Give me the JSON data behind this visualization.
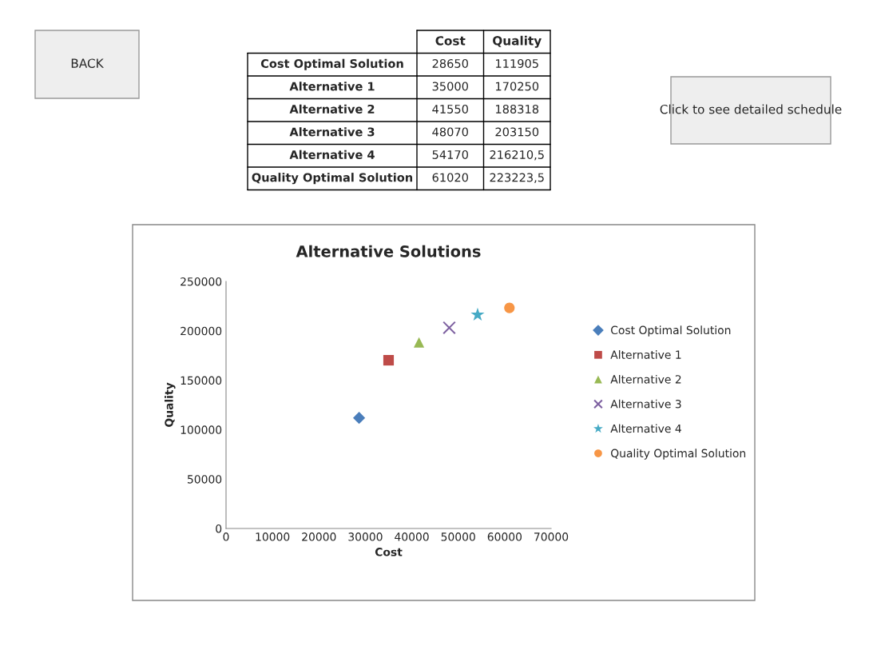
{
  "chart_data": [
    {
      "type": "other",
      "categories": [
        "Cost Optimal Solution",
        "Alternative 1",
        "Alternative 2",
        "Alternative 3",
        "Alternative 4",
        "Quality Optimal Solution"
      ],
      "series": [
        {
          "name": "Cost",
          "values": [
            28650,
            35000,
            41550,
            48070,
            54170,
            61020
          ]
        },
        {
          "name": "Quality",
          "values": [
            111905,
            170250,
            188318,
            203150,
            216210.5,
            223223.5
          ],
          "value_labels": [
            "111905",
            "170250",
            "188318",
            "203150",
            "216210,5",
            "223223,5"
          ]
        }
      ],
      "data_labels": true,
      "annotations": [
        "BACK",
        "Click to see detailed schedule"
      ]
    },
    {
      "type": "scatter",
      "title": "Alternative Solutions",
      "xlabel": "Cost",
      "ylabel": "Quality",
      "series": [
        {
          "name": "Cost Optimal Solution",
          "color": "#4a7ebb",
          "marker": "diamond",
          "x": [
            28650
          ],
          "values": [
            111905
          ]
        },
        {
          "name": "Alternative 1",
          "color": "#be4b48",
          "marker": "square",
          "x": [
            35000
          ],
          "values": [
            170250
          ]
        },
        {
          "name": "Alternative 2",
          "color": "#98b954",
          "marker": "triangle",
          "x": [
            41550
          ],
          "values": [
            188318
          ]
        },
        {
          "name": "Alternative 3",
          "color": "#7d60a0",
          "marker": "cross",
          "x": [
            48070
          ],
          "values": [
            203150
          ]
        },
        {
          "name": "Alternative 4",
          "color": "#46aac5",
          "marker": "star",
          "x": [
            54170
          ],
          "values": [
            216210.5
          ]
        },
        {
          "name": "Quality Optimal Solution",
          "color": "#f79646",
          "marker": "circle",
          "x": [
            61020
          ],
          "values": [
            223223.5
          ]
        }
      ],
      "xlim": [
        0,
        70000
      ],
      "xticks": [
        0,
        10000,
        20000,
        30000,
        40000,
        50000,
        60000,
        70000
      ],
      "ylim": [
        0,
        250000
      ],
      "yticks": [
        0,
        50000,
        100000,
        150000,
        200000,
        250000
      ],
      "grid": false,
      "legend": "right"
    }
  ]
}
